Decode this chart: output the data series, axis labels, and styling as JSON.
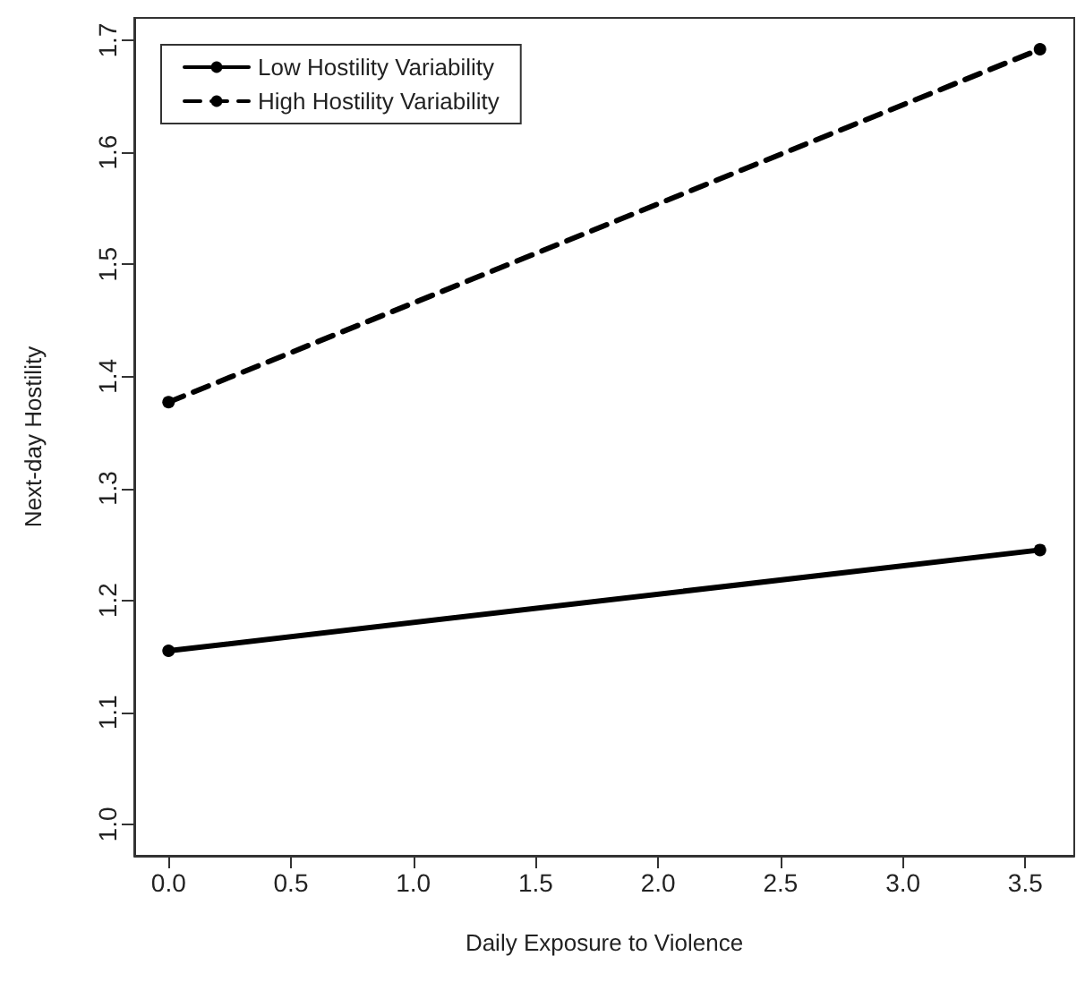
{
  "chart_data": {
    "type": "line",
    "xlabel": "Daily Exposure to Violence",
    "ylabel": "Next-day Hostility",
    "x": [
      0,
      3.56
    ],
    "series": [
      {
        "name": "Low Hostility Variability",
        "color": "#000000",
        "values": [
          1.155,
          1.245
        ],
        "line_style": "solid"
      },
      {
        "name": "High Hostility Variability",
        "color": "#000000",
        "values": [
          1.377,
          1.692
        ],
        "line_style": "dashed"
      }
    ],
    "xlim": [
      -0.14,
      3.7
    ],
    "xticks": [
      {
        "value": 0,
        "label": "0.0"
      },
      {
        "value": 0.5,
        "label": "0.5"
      },
      {
        "value": 1,
        "label": "1.0"
      },
      1.5,
      {
        "value": 2,
        "label": "2.0"
      },
      2.5,
      {
        "value": 3,
        "label": "3.0"
      },
      3.5
    ],
    "ylim": [
      0.972,
      1.72
    ],
    "yticks": [
      {
        "value": 1,
        "label": "1.0"
      },
      1.1,
      1.2,
      1.3,
      1.4,
      1.5,
      1.6,
      1.7
    ],
    "marker": "circle",
    "legend": "top left",
    "grid": false
  }
}
